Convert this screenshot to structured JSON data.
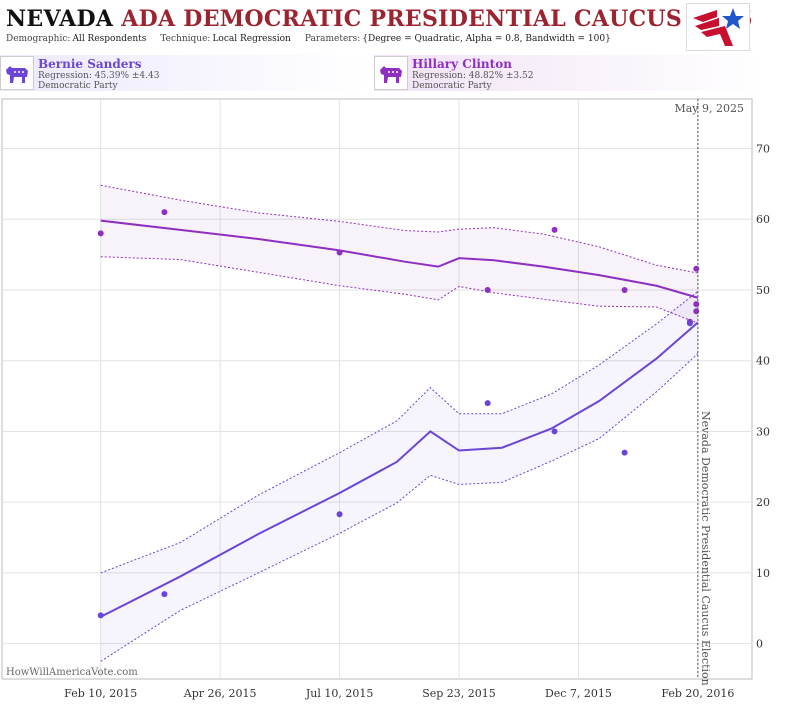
{
  "header": {
    "title_state": "NEVADA",
    "title_rest": "ADA DEMOCRATIC PRESIDENTIAL CAUCUS 2016",
    "demographic_label": "Demographic:",
    "demographic_value": "All Respondents",
    "technique_label": "Technique:",
    "technique_value": "Local Regression",
    "parameters_label": "Parameters:",
    "parameters_value": "{Degree = Quadratic, Alpha = 0.8, Bandwidth = 100}"
  },
  "candidates": [
    {
      "name": "Bernie Sanders",
      "regression": "Regression: 45.39% ±4.43",
      "party": "Democratic Party",
      "color": "#6a45d8"
    },
    {
      "name": "Hillary Clinton",
      "regression": "Regression: 48.82% ±3.52",
      "party": "Democratic Party",
      "color": "#8e2fc2"
    }
  ],
  "chart_data": {
    "type": "line",
    "title": "NEVADA ADA DEMOCRATIC PRESIDENTIAL CAUCUS 2016",
    "xlabel": "",
    "ylabel": "",
    "ylim": [
      -5,
      77
    ],
    "xlim": [
      "2014-12-10",
      "2016-03-25"
    ],
    "x_ticks": [
      "2015-02-10",
      "2015-04-26",
      "2015-07-10",
      "2015-09-23",
      "2015-12-07",
      "2016-02-20"
    ],
    "x_tick_labels": [
      "Feb 10, 2015",
      "Apr 26, 2015",
      "Jul 10, 2015",
      "Sep 23, 2015",
      "Dec 7, 2015",
      "Feb 20, 2016"
    ],
    "y_ticks": [
      0,
      10,
      20,
      30,
      40,
      50,
      60,
      70
    ],
    "y_tick_labels": [
      "0",
      "10",
      "20",
      "30",
      "40",
      "50",
      "60",
      "70"
    ],
    "grid": true,
    "today_label": "May 9, 2025",
    "event_date": "2016-02-20",
    "event_label": "Nevada Democratic Presidential Caucus Election",
    "watermark": "HowWillAmericaVote.com",
    "series": [
      {
        "name": "Hillary Clinton",
        "color": "#8e2fc2",
        "points": [
          {
            "x": "2015-02-10",
            "y": 58
          },
          {
            "x": "2015-03-22",
            "y": 61
          },
          {
            "x": "2015-07-10",
            "y": 55.3
          },
          {
            "x": "2015-10-11",
            "y": 50
          },
          {
            "x": "2015-11-22",
            "y": 58.5
          },
          {
            "x": "2016-01-05",
            "y": 50
          },
          {
            "x": "2016-02-15",
            "y": 45.5
          },
          {
            "x": "2016-02-19",
            "y": 53
          },
          {
            "x": "2016-02-19",
            "y": 48
          },
          {
            "x": "2016-02-19",
            "y": 47
          }
        ],
        "trend": [
          {
            "x": "2015-02-10",
            "y": 59.8,
            "lo": 54.7,
            "hi": 64.8
          },
          {
            "x": "2015-04-01",
            "y": 58.5,
            "lo": 54.3,
            "hi": 62.7
          },
          {
            "x": "2015-05-20",
            "y": 57.2,
            "lo": 52.5,
            "hi": 60.9
          },
          {
            "x": "2015-07-10",
            "y": 55.6,
            "lo": 50.6,
            "hi": 59.7
          },
          {
            "x": "2015-08-20",
            "y": 54.0,
            "lo": 49.4,
            "hi": 58.4
          },
          {
            "x": "2015-09-10",
            "y": 53.3,
            "lo": 48.6,
            "hi": 58.2
          },
          {
            "x": "2015-09-23",
            "y": 54.5,
            "lo": 50.5,
            "hi": 58.6
          },
          {
            "x": "2015-10-15",
            "y": 54.2,
            "lo": 49.6,
            "hi": 58.8
          },
          {
            "x": "2015-11-15",
            "y": 53.3,
            "lo": 48.7,
            "hi": 57.9
          },
          {
            "x": "2015-12-20",
            "y": 52.1,
            "lo": 47.7,
            "hi": 56.1
          },
          {
            "x": "2016-01-25",
            "y": 50.6,
            "lo": 47.6,
            "hi": 53.5
          },
          {
            "x": "2016-02-20",
            "y": 48.9,
            "lo": 45.3,
            "hi": 52.4
          }
        ]
      },
      {
        "name": "Bernie Sanders",
        "color": "#6a45d8",
        "points": [
          {
            "x": "2015-02-10",
            "y": 4
          },
          {
            "x": "2015-03-22",
            "y": 7
          },
          {
            "x": "2015-07-10",
            "y": 18.3
          },
          {
            "x": "2015-10-11",
            "y": 34
          },
          {
            "x": "2015-11-22",
            "y": 30
          },
          {
            "x": "2016-01-05",
            "y": 27
          },
          {
            "x": "2016-02-15",
            "y": 45.3
          }
        ],
        "trend": [
          {
            "x": "2015-02-10",
            "y": 3.8,
            "lo": -2.5,
            "hi": 10.0
          },
          {
            "x": "2015-04-01",
            "y": 9.5,
            "lo": 4.7,
            "hi": 14.3
          },
          {
            "x": "2015-05-20",
            "y": 15.5,
            "lo": 10.0,
            "hi": 21.0
          },
          {
            "x": "2015-07-10",
            "y": 21.3,
            "lo": 15.6,
            "hi": 27.0
          },
          {
            "x": "2015-08-15",
            "y": 25.7,
            "lo": 19.9,
            "hi": 31.5
          },
          {
            "x": "2015-09-05",
            "y": 30.0,
            "lo": 23.8,
            "hi": 36.2
          },
          {
            "x": "2015-09-23",
            "y": 27.3,
            "lo": 22.5,
            "hi": 32.5
          },
          {
            "x": "2015-10-20",
            "y": 27.7,
            "lo": 22.8,
            "hi": 32.5
          },
          {
            "x": "2015-11-20",
            "y": 30.4,
            "lo": 25.8,
            "hi": 35.3
          },
          {
            "x": "2015-12-20",
            "y": 34.3,
            "lo": 29.0,
            "hi": 39.4
          },
          {
            "x": "2016-01-25",
            "y": 40.3,
            "lo": 35.6,
            "hi": 45.2
          },
          {
            "x": "2016-02-20",
            "y": 45.4,
            "lo": 41.0,
            "hi": 49.8
          }
        ]
      }
    ]
  }
}
